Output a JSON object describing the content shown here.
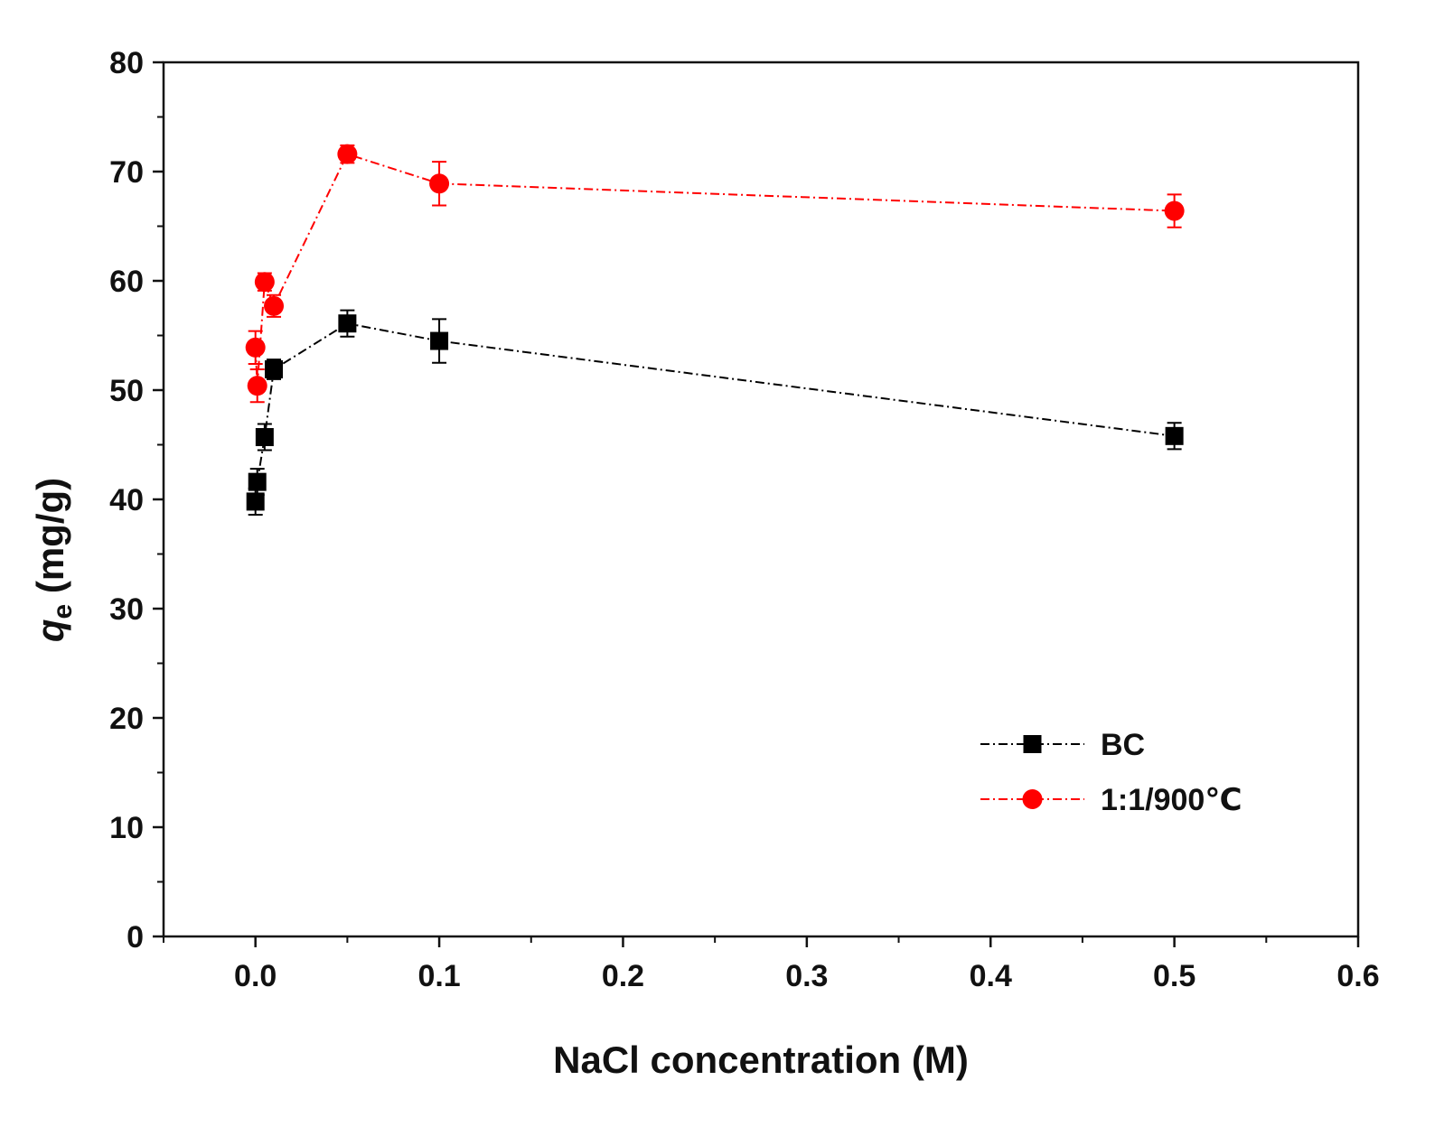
{
  "chart_data": {
    "type": "line",
    "title": "",
    "xlabel": "NaCl concentration (M)",
    "ylabel": {
      "main": "q",
      "sub": "e",
      "unit": " (mg/g)"
    },
    "xlim": [
      -0.05,
      0.6
    ],
    "ylim": [
      0,
      80
    ],
    "x_ticks": [
      0.0,
      0.1,
      0.2,
      0.3,
      0.4,
      0.5,
      0.6
    ],
    "x_tick_labels": [
      "0.0",
      "0.1",
      "0.2",
      "0.3",
      "0.4",
      "0.5",
      "0.6"
    ],
    "y_ticks": [
      0,
      10,
      20,
      30,
      40,
      50,
      60,
      70,
      80
    ],
    "y_tick_labels": [
      "0",
      "10",
      "20",
      "30",
      "40",
      "50",
      "60",
      "70",
      "80"
    ],
    "grid": false,
    "legend_position": "bottom-right",
    "series": [
      {
        "name": "BC",
        "color": "#000000",
        "marker": "square",
        "line_style": "dash-dot",
        "x": [
          0,
          0.001,
          0.005,
          0.01,
          0.05,
          0.1,
          0.5
        ],
        "y": [
          39.8,
          41.6,
          45.7,
          51.9,
          56.1,
          54.5,
          45.8
        ],
        "error": [
          1.2,
          1.2,
          1.2,
          0.9,
          1.2,
          2.0,
          1.2
        ]
      },
      {
        "name": "1:1/900℃",
        "color": "#ff0000",
        "marker": "circle",
        "line_style": "dash-dot",
        "x": [
          0,
          0.001,
          0.005,
          0.01,
          0.05,
          0.1,
          0.5
        ],
        "y": [
          53.9,
          50.4,
          59.9,
          57.7,
          71.6,
          68.9,
          66.4
        ],
        "error": [
          1.5,
          1.5,
          0.8,
          1.0,
          0.8,
          2.0,
          1.5
        ]
      }
    ]
  }
}
